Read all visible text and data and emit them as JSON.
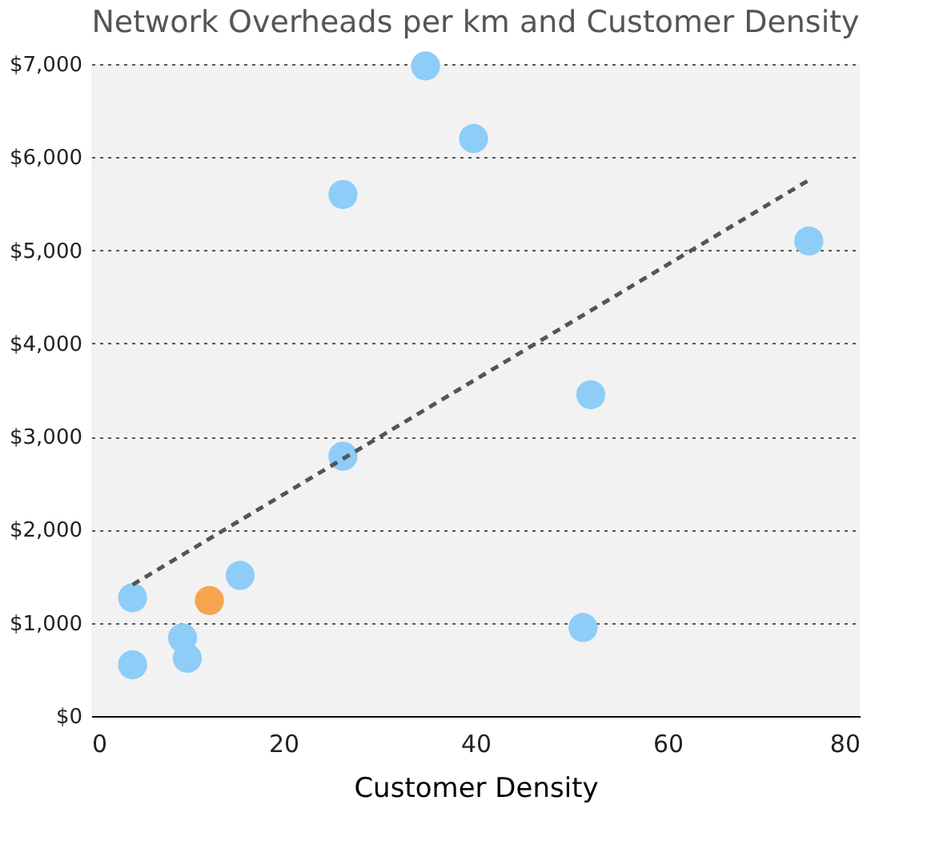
{
  "chart_data": {
    "type": "scatter",
    "title": "Network Overheads per km and Customer Density",
    "xlabel": "Customer Density",
    "xlim": [
      0,
      80
    ],
    "xticks": [
      0,
      20,
      40,
      60,
      80
    ],
    "ylim": [
      0,
      7000
    ],
    "yticks": [
      {
        "value": 0,
        "label": "$0"
      },
      {
        "value": 1000,
        "label": "$1,000"
      },
      {
        "value": 2000,
        "label": "$2,000"
      },
      {
        "value": 3000,
        "label": "$3,000"
      },
      {
        "value": 4000,
        "label": "$4,000"
      },
      {
        "value": 5000,
        "label": "$5,000"
      },
      {
        "value": 6000,
        "label": "$6,000"
      },
      {
        "value": 7000,
        "label": "$7,000"
      }
    ],
    "grid": "y",
    "marker": "circle",
    "legend": false,
    "series": [
      {
        "type": "scatter",
        "color": "#8ecdf7",
        "x": [
          34.8,
          39.8,
          26.2,
          74.7,
          52,
          26.2,
          15.5,
          4.3,
          9.5,
          51.2,
          4.3,
          10
        ],
        "values": [
          6980,
          6200,
          5600,
          5100,
          3450,
          2790,
          1510,
          1270,
          840,
          950,
          550,
          620
        ]
      },
      {
        "type": "scatter",
        "color": "#f8a34f",
        "x": [
          12.3
        ],
        "values": [
          1240
        ]
      },
      {
        "type": "line",
        "color": "#555555",
        "line_style": "dashed",
        "marker": "none",
        "x": [
          4.3,
          74.8
        ],
        "values": [
          1410,
          5760
        ]
      }
    ]
  }
}
